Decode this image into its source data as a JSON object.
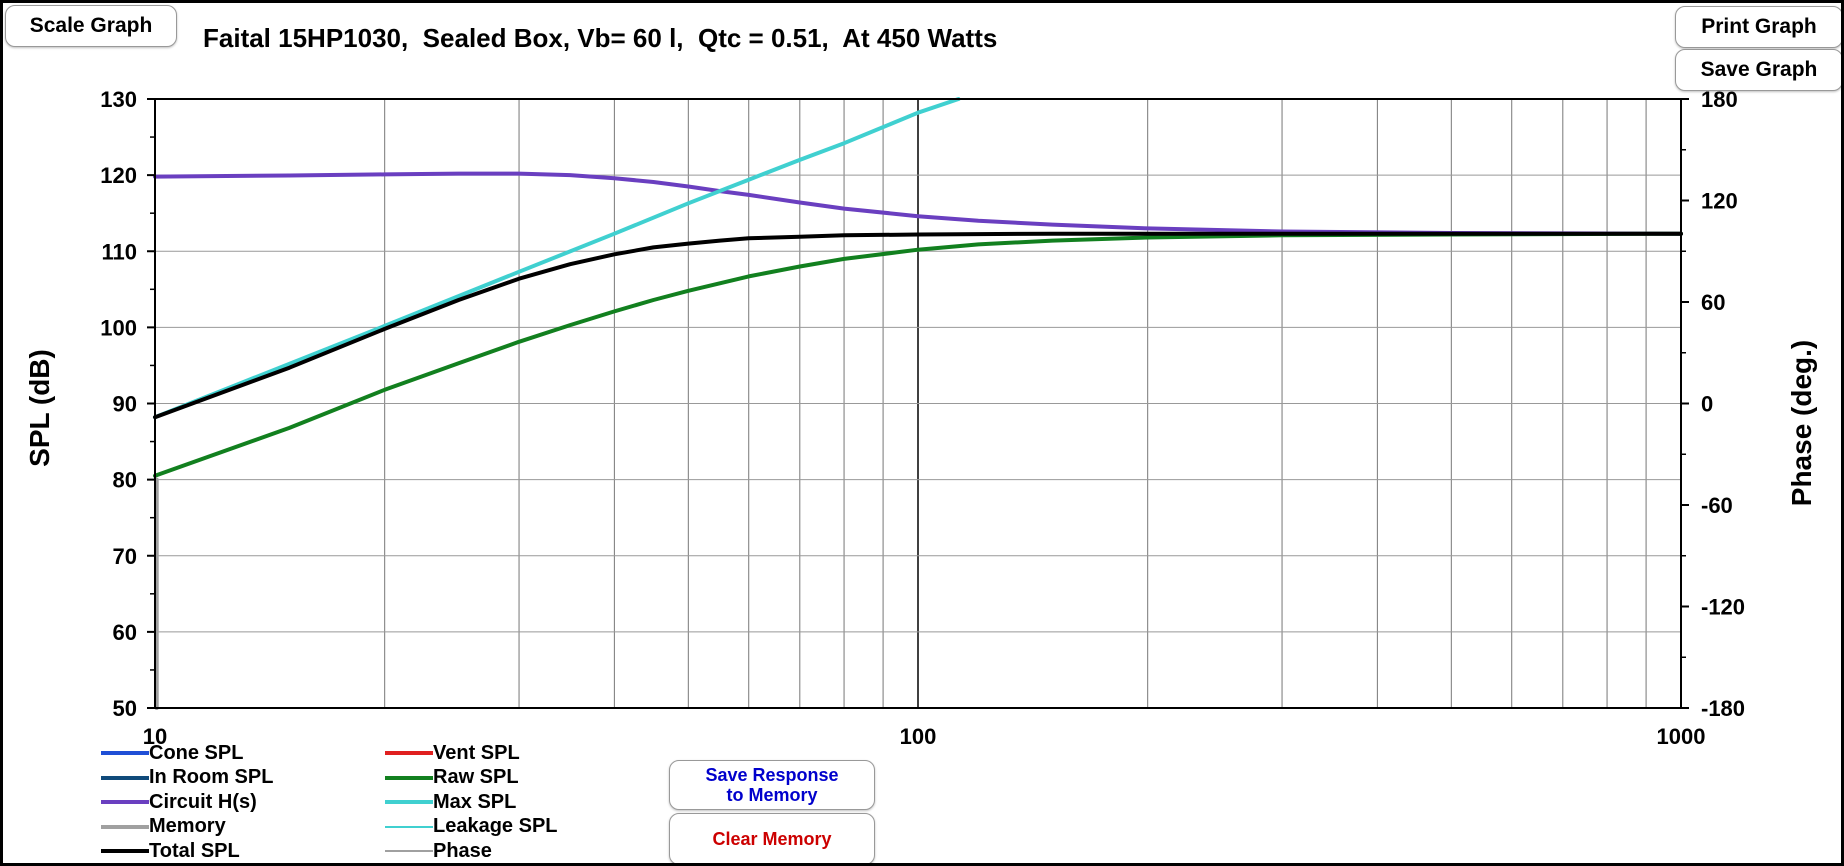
{
  "title": "Faital 15HP1030,  Sealed Box, Vb= 60 l,  Qtc = 0.51,  At 450 Watts",
  "buttons": {
    "scale_graph": "Scale Graph",
    "print_graph": "Print Graph",
    "save_graph": "Save Graph",
    "save_response_line1": "Save Response",
    "save_response_line2": "to Memory",
    "clear_memory": "Clear Memory"
  },
  "colors": {
    "save_response_text": "#0000cc",
    "clear_memory_text": "#cc0000"
  },
  "legend": [
    {
      "label": "Cone SPL",
      "color": "#1f4fd6",
      "thin": false
    },
    {
      "label": "Vent SPL",
      "color": "#e02020",
      "thin": false
    },
    {
      "label": "In Room SPL",
      "color": "#104a7a",
      "thin": false
    },
    {
      "label": "Raw SPL",
      "color": "#12801f",
      "thin": false
    },
    {
      "label": "Circuit H(s)",
      "color": "#6a3fc0",
      "thin": false
    },
    {
      "label": "Max SPL",
      "color": "#40d0d0",
      "thin": false
    },
    {
      "label": "Memory",
      "color": "#a0a0a0",
      "thin": false
    },
    {
      "label": "Leakage SPL",
      "color": "#40d0d0",
      "thin": true
    },
    {
      "label": "Total SPL",
      "color": "#000000",
      "thin": false
    },
    {
      "label": "Phase",
      "color": "#a0a0a0",
      "thin": true
    }
  ],
  "chart_data": {
    "type": "line",
    "title": "Faital 15HP1030,  Sealed Box, Vb= 60 l,  Qtc = 0.51,  At 450 Watts",
    "xscale": "log",
    "xlim": [
      10,
      1000
    ],
    "ylim": [
      50,
      130
    ],
    "y2lim": [
      -180,
      180
    ],
    "ylabel": "SPL (dB)",
    "y2label": "Phase (deg.)",
    "xticks": [
      "10",
      "100",
      "1000"
    ],
    "yticks": [
      "50",
      "60",
      "70",
      "80",
      "90",
      "100",
      "110",
      "120",
      "130"
    ],
    "y2ticks": [
      "-180",
      "-120",
      "-60",
      "0",
      "60",
      "120",
      "180"
    ],
    "grid": true,
    "series": [
      {
        "name": "Circuit H(s)",
        "color": "#6a3fc0",
        "x": [
          10,
          15,
          20,
          25,
          30,
          35,
          40,
          45,
          50,
          55,
          60,
          70,
          80,
          100,
          120,
          150,
          200,
          300,
          500,
          1000
        ],
        "y": [
          119.8,
          119.95,
          120.1,
          120.2,
          120.2,
          120.0,
          119.6,
          119.1,
          118.5,
          117.9,
          117.4,
          116.4,
          115.6,
          114.6,
          114.0,
          113.5,
          113.0,
          112.6,
          112.4,
          112.3
        ]
      },
      {
        "name": "Max SPL",
        "color": "#40d0d0",
        "x": [
          10,
          20,
          30,
          40,
          50,
          60,
          70,
          80,
          100,
          113
        ],
        "y": [
          88.2,
          100.2,
          107.3,
          112.3,
          116.3,
          119.4,
          122.0,
          124.2,
          128.2,
          130.0
        ]
      },
      {
        "name": "Raw SPL",
        "color": "#12801f",
        "x": [
          10,
          15,
          20,
          25,
          30,
          35,
          40,
          45,
          50,
          60,
          70,
          80,
          100,
          120,
          150,
          200,
          300,
          500,
          1000
        ],
        "y": [
          80.5,
          86.8,
          91.8,
          95.3,
          98.1,
          100.3,
          102.1,
          103.6,
          104.8,
          106.7,
          108.0,
          109.0,
          110.2,
          110.9,
          111.4,
          111.8,
          112.1,
          112.2,
          112.3
        ]
      },
      {
        "name": "Total SPL",
        "color": "#000000",
        "x": [
          10,
          15,
          20,
          25,
          30,
          35,
          40,
          45,
          50,
          55,
          60,
          70,
          80,
          100,
          150,
          200,
          500,
          1000
        ],
        "y": [
          88.2,
          94.7,
          99.8,
          103.6,
          106.4,
          108.3,
          109.6,
          110.5,
          111.0,
          111.4,
          111.7,
          111.9,
          112.1,
          112.2,
          112.3,
          112.3,
          112.3,
          112.3
        ]
      },
      {
        "name": "Memory",
        "color": "#a0a0a0",
        "x": [
          10.05,
          10.05
        ],
        "y": [
          50,
          80
        ]
      }
    ]
  }
}
